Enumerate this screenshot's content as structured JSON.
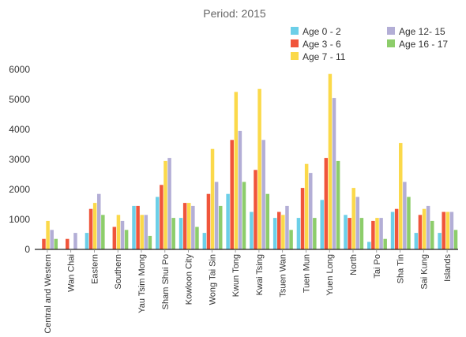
{
  "chart_data": {
    "type": "bar",
    "title": "Period: 2015",
    "xlabel": "",
    "ylabel": "",
    "ylim": [
      0,
      6000
    ],
    "yticks": [
      0,
      1000,
      2000,
      3000,
      4000,
      5000,
      6000
    ],
    "grid": false,
    "legend_position": "top-right",
    "categories": [
      "Central and Western",
      "Wan Chai",
      "Eastern",
      "Southern",
      "Yau Tsim Mong",
      "Sham Shui Po",
      "Kowloon City",
      "Wong Tai Sin",
      "Kwun Tong",
      "Kwai Tsing",
      "Tsuen Wan",
      "Tuen Mun",
      "Yuen Long",
      "North",
      "Tai Po",
      "Sha Tin",
      "Sai Kung",
      "Islands"
    ],
    "series": [
      {
        "name": "Age 0 - 2",
        "color": "#6ccfe8",
        "values": [
          0,
          0,
          550,
          0,
          1450,
          1750,
          1050,
          550,
          1850,
          1250,
          1050,
          1050,
          1650,
          1150,
          250,
          1250,
          550,
          550
        ]
      },
      {
        "name": "Age 3 - 6",
        "color": "#f0553b",
        "values": [
          350,
          350,
          1350,
          750,
          1450,
          2150,
          1550,
          1850,
          3650,
          2650,
          1250,
          2050,
          3050,
          1050,
          950,
          1350,
          1150,
          1250
        ]
      },
      {
        "name": "Age 7 - 11",
        "color": "#fbd94a",
        "values": [
          950,
          0,
          1550,
          1150,
          1150,
          2950,
          1550,
          3350,
          5250,
          5350,
          1150,
          2850,
          5850,
          2050,
          1050,
          3550,
          1350,
          1250
        ]
      },
      {
        "name": "Age 12- 15",
        "color": "#b3aed6",
        "values": [
          650,
          550,
          1850,
          950,
          1150,
          3050,
          1450,
          2250,
          3950,
          3650,
          1450,
          2550,
          5050,
          1750,
          1050,
          2250,
          1450,
          1250
        ]
      },
      {
        "name": "Age 16 - 17",
        "color": "#8dcd6b",
        "values": [
          350,
          0,
          1150,
          650,
          450,
          1050,
          750,
          1450,
          2250,
          1850,
          650,
          1050,
          2950,
          1050,
          350,
          1750,
          950,
          650
        ]
      }
    ]
  }
}
